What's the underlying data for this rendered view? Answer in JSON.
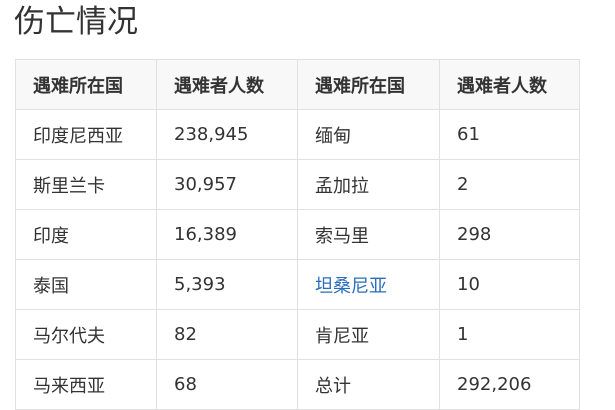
{
  "title": "伤亡情况",
  "link_color": "#2a6ebb",
  "table": {
    "headers": [
      "遇难所在国",
      "遇难者人数",
      "遇难所在国",
      "遇难者人数"
    ],
    "rows": [
      [
        "印度尼西亚",
        "238,945",
        "缅甸",
        "61"
      ],
      [
        "斯里兰卡",
        "30,957",
        "孟加拉",
        "2"
      ],
      [
        "印度",
        "16,389",
        "索马里",
        "298"
      ],
      [
        "泰国",
        "5,393",
        "坦桑尼亚",
        "10"
      ],
      [
        "马尔代夫",
        "82",
        "肯尼亚",
        "1"
      ],
      [
        "马来西亚",
        "68",
        "总计",
        "292,206"
      ]
    ],
    "links": [
      "坦桑尼亚"
    ]
  }
}
